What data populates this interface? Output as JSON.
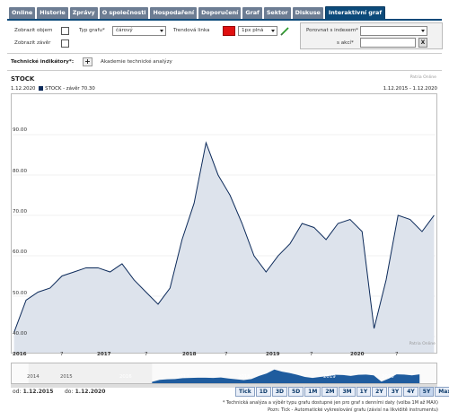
{
  "tabs": [
    {
      "label": "Online"
    },
    {
      "label": "Historie"
    },
    {
      "label": "Zprávy"
    },
    {
      "label": "O společnosti"
    },
    {
      "label": "Hospodaření"
    },
    {
      "label": "Doporučení"
    },
    {
      "label": "Graf"
    },
    {
      "label": "Sektor"
    },
    {
      "label": "Diskuse"
    },
    {
      "label": "Interaktivní graf"
    }
  ],
  "controls": {
    "show_volume": "Zobrazit objem",
    "show_close": "Zobrazit závěr",
    "chart_type_label": "Typ grafu*",
    "chart_type_value": "čárový",
    "trend_label": "Trendová linka",
    "trend_width": "1px plná",
    "compare_index_label": "Porovnat s indexem*",
    "compare_stock_label": "s akcí*",
    "compare_clear": "X",
    "indicators_label": "Technické indikátory*:",
    "add_indicator": "+",
    "academy_label": "Akademie technické analýzy"
  },
  "chart": {
    "title": "STOCK",
    "source": "Patria Online",
    "legend_series": "STOCK - závěr 70.30",
    "range_label": "1.12.2015 - 1.12.2020",
    "y_ticks": [
      "90.00",
      "80.00",
      "70.00",
      "60.00",
      "50.00",
      "40.00"
    ],
    "x_ticks": [
      "2016",
      "7",
      "2017",
      "7",
      "2018",
      "7",
      "2019",
      "7",
      "2020",
      "7"
    ]
  },
  "chart_data": {
    "type": "area",
    "ylim": [
      36,
      100
    ],
    "y_ticks": [
      90,
      80,
      70,
      60,
      50,
      40
    ],
    "x": [
      "2015-12",
      "2016-02",
      "2016-04",
      "2016-06",
      "2016-08",
      "2016-10",
      "2016-12",
      "2017-02",
      "2017-04",
      "2017-06",
      "2017-08",
      "2017-10",
      "2017-11",
      "2017-12",
      "2018-01",
      "2018-02",
      "2018-03",
      "2018-04",
      "2018-06",
      "2018-08",
      "2018-10",
      "2018-12",
      "2019-02",
      "2019-04",
      "2019-06",
      "2019-08",
      "2019-10",
      "2019-12",
      "2020-01",
      "2020-02",
      "2020-03",
      "2020-04",
      "2020-05",
      "2020-07",
      "2020-09",
      "2020-11"
    ],
    "series": [
      {
        "name": "STOCK - závěr",
        "values": [
          41,
          49,
          51,
          52,
          55,
          56,
          57,
          57,
          56,
          58,
          54,
          51,
          48,
          52,
          64,
          73,
          88,
          80,
          75,
          68,
          60,
          56,
          60,
          63,
          68,
          67,
          64,
          68,
          69,
          66,
          42,
          54,
          70,
          69,
          66,
          70
        ]
      }
    ]
  },
  "navigator": {
    "labels": [
      "2014",
      "2015",
      "2016",
      "2017",
      "2018",
      "2019",
      "2020"
    ]
  },
  "dates": {
    "from_label": "od:",
    "from_value": "1.12.2015",
    "to_label": "do:",
    "to_value": "1.12.2020"
  },
  "zoom_buttons": [
    {
      "label": "Tick"
    },
    {
      "label": "1D"
    },
    {
      "label": "3D"
    },
    {
      "label": "5D"
    },
    {
      "label": "1M"
    },
    {
      "label": "2M"
    },
    {
      "label": "3M"
    },
    {
      "label": "1Y"
    },
    {
      "label": "2Y"
    },
    {
      "label": "3Y"
    },
    {
      "label": "4Y"
    },
    {
      "label": "5Y"
    },
    {
      "label": "Max"
    }
  ],
  "footnotes": [
    "* Technická analýza a výběr typu grafu dostupné jen pro graf s denními daty (volba 1M až MAX)",
    "Pozn: Tick - Automatické vykreslování grafu (závisí na likviditě instrumentu)"
  ],
  "colors": {
    "tab_bg": "#6d7d93",
    "tab_active": "#0c4a7a",
    "line": "#0c2a5a",
    "area": "#dde3ec",
    "trend_color": "#e01010"
  }
}
